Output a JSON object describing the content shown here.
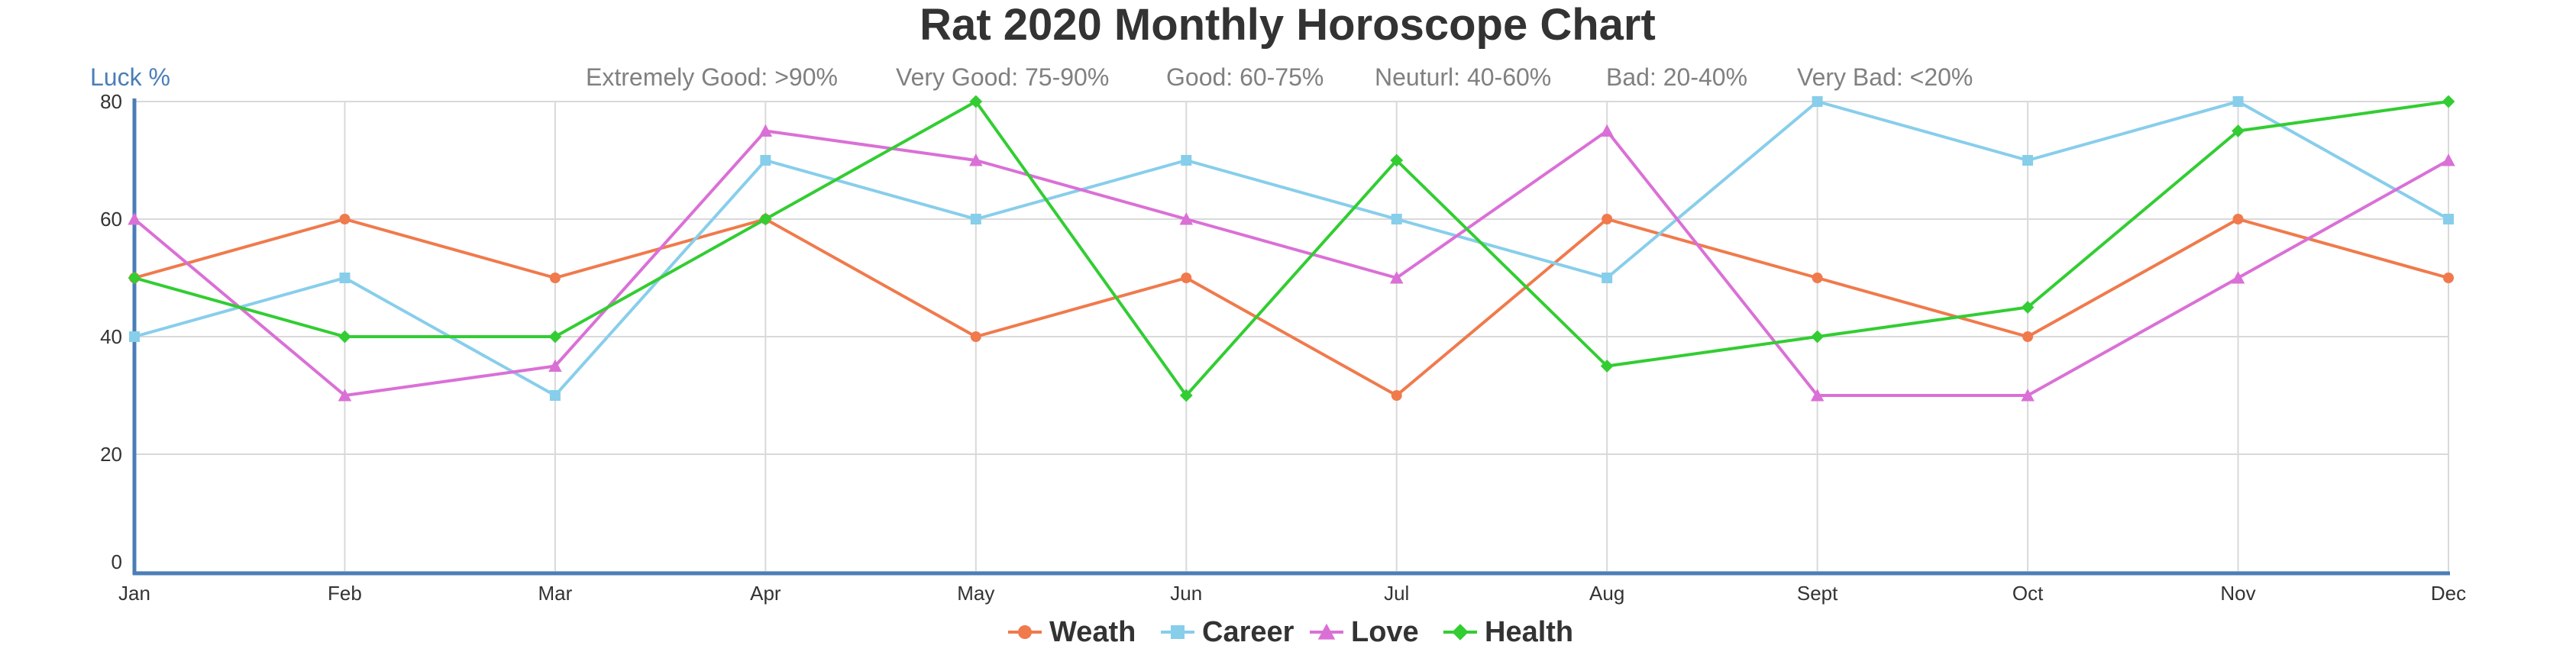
{
  "chart_data": {
    "type": "line",
    "title": "Rat 2020 Monthly Horoscope Chart",
    "ylabel": "Luck %",
    "xlabel": "",
    "luck_levels": [
      "Extremely Good: >90%",
      "Very Good: 75-90%",
      "Good: 60-75%",
      "Neuturl: 40-60%",
      "Bad: 20-40%",
      "Very Bad: <20%"
    ],
    "categories": [
      "Jan",
      "Feb",
      "Mar",
      "Apr",
      "May",
      "Jun",
      "Jul",
      "Aug",
      "Sept",
      "Oct",
      "Nov",
      "Dec"
    ],
    "ylim": [
      0,
      80
    ],
    "yticks": [
      0,
      20,
      40,
      60,
      80
    ],
    "grid": true,
    "legend_position": "bottom",
    "series": [
      {
        "name": "Weath",
        "color": "#f07a4c",
        "marker": "circle",
        "values": [
          50,
          60,
          50,
          60,
          40,
          50,
          30,
          60,
          50,
          40,
          60,
          50
        ]
      },
      {
        "name": "Career",
        "color": "#87ceeb",
        "marker": "square",
        "values": [
          40,
          50,
          30,
          70,
          60,
          70,
          60,
          50,
          80,
          70,
          80,
          60
        ]
      },
      {
        "name": "Love",
        "color": "#da70d6",
        "marker": "triangle",
        "values": [
          60,
          30,
          35,
          75,
          70,
          60,
          50,
          75,
          30,
          30,
          50,
          70
        ]
      },
      {
        "name": "Health",
        "color": "#32cd32",
        "marker": "diamond",
        "values": [
          50,
          40,
          40,
          60,
          80,
          30,
          70,
          35,
          40,
          45,
          75,
          80
        ]
      }
    ],
    "colors": {
      "axis": "#4a7eb8",
      "grid": "#d9d9d9",
      "ylabel": "#4a7eb8"
    }
  }
}
